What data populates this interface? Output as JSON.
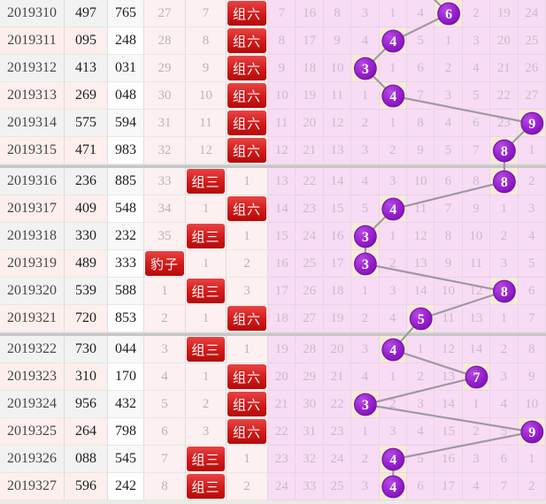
{
  "colors": {
    "badge_red": "#d01212",
    "circle_purple": "#9320c9",
    "trend_line_gray": "#9f99a1",
    "grid_cell_pink": "#f8dcf5",
    "hit_cell_cream": "#f8ead9",
    "row_stripe_gray": "#f2f2f2",
    "row_stripe_pink": "#fcefee",
    "miss_text_gray": "#b6b6b6",
    "grid_text_gray": "#c9bcc9"
  },
  "chart_data": {
    "type": "table",
    "description_labels": {
      "badge_zu6": "组六",
      "badge_zu3": "组三",
      "badge_baozi": "豹子"
    },
    "grid_columns": 10,
    "group_size": 6,
    "span_values": [
      6,
      4,
      3,
      4,
      9,
      8,
      8,
      4,
      3,
      3,
      8,
      5,
      4,
      7,
      3,
      9,
      4,
      4
    ],
    "rows": [
      {
        "issue": "2019310",
        "num1": "497",
        "num2": "765",
        "miss": [
          "27",
          "7",
          "组六"
        ],
        "badge_index": 2,
        "grid": [
          "7",
          "16",
          "8",
          "3",
          "1",
          "4",
          "6",
          "2",
          "19",
          "24"
        ],
        "hit_col": 6
      },
      {
        "issue": "2019311",
        "num1": "095",
        "num2": "248",
        "miss": [
          "28",
          "8",
          "组六"
        ],
        "badge_index": 2,
        "grid": [
          "8",
          "17",
          "9",
          "4",
          "4",
          "5",
          "1",
          "3",
          "20",
          "25"
        ],
        "hit_col": 4
      },
      {
        "issue": "2019312",
        "num1": "413",
        "num2": "031",
        "miss": [
          "29",
          "9",
          "组六"
        ],
        "badge_index": 2,
        "grid": [
          "9",
          "18",
          "10",
          "3",
          "1",
          "6",
          "2",
          "4",
          "21",
          "26"
        ],
        "hit_col": 3
      },
      {
        "issue": "2019313",
        "num1": "269",
        "num2": "048",
        "miss": [
          "30",
          "10",
          "组六"
        ],
        "badge_index": 2,
        "grid": [
          "10",
          "19",
          "11",
          "1",
          "4",
          "7",
          "3",
          "5",
          "22",
          "27"
        ],
        "hit_col": 4
      },
      {
        "issue": "2019314",
        "num1": "575",
        "num2": "594",
        "miss": [
          "31",
          "11",
          "组六"
        ],
        "badge_index": 2,
        "grid": [
          "11",
          "20",
          "12",
          "2",
          "1",
          "8",
          "4",
          "6",
          "23",
          "9"
        ],
        "hit_col": 9
      },
      {
        "issue": "2019315",
        "num1": "471",
        "num2": "983",
        "miss": [
          "32",
          "12",
          "组六"
        ],
        "badge_index": 2,
        "grid": [
          "12",
          "21",
          "13",
          "3",
          "2",
          "9",
          "5",
          "7",
          "8",
          "1"
        ],
        "hit_col": 8
      },
      {
        "issue": "2019316",
        "num1": "236",
        "num2": "885",
        "miss": [
          "33",
          "组三",
          "1"
        ],
        "badge_index": 1,
        "grid": [
          "13",
          "22",
          "14",
          "4",
          "3",
          "10",
          "6",
          "8",
          "8",
          "2"
        ],
        "hit_col": 8
      },
      {
        "issue": "2019317",
        "num1": "409",
        "num2": "548",
        "miss": [
          "34",
          "1",
          "组六"
        ],
        "badge_index": 2,
        "grid": [
          "14",
          "23",
          "15",
          "5",
          "4",
          "11",
          "7",
          "9",
          "1",
          "3"
        ],
        "hit_col": 4
      },
      {
        "issue": "2019318",
        "num1": "330",
        "num2": "232",
        "miss": [
          "35",
          "组三",
          "1"
        ],
        "badge_index": 1,
        "grid": [
          "15",
          "24",
          "16",
          "3",
          "1",
          "12",
          "8",
          "10",
          "2",
          "4"
        ],
        "hit_col": 3
      },
      {
        "issue": "2019319",
        "num1": "489",
        "num2": "333",
        "miss": [
          "豹子",
          "1",
          "2"
        ],
        "badge_index": 0,
        "grid": [
          "16",
          "25",
          "17",
          "3",
          "2",
          "13",
          "9",
          "11",
          "3",
          "5"
        ],
        "hit_col": 3
      },
      {
        "issue": "2019320",
        "num1": "539",
        "num2": "588",
        "miss": [
          "1",
          "组三",
          "3"
        ],
        "badge_index": 1,
        "grid": [
          "17",
          "26",
          "18",
          "1",
          "3",
          "14",
          "10",
          "12",
          "8",
          "6"
        ],
        "hit_col": 8
      },
      {
        "issue": "2019321",
        "num1": "720",
        "num2": "853",
        "miss": [
          "2",
          "1",
          "组六"
        ],
        "badge_index": 2,
        "grid": [
          "18",
          "27",
          "19",
          "2",
          "4",
          "5",
          "11",
          "13",
          "1",
          "7"
        ],
        "hit_col": 5
      },
      {
        "issue": "2019322",
        "num1": "730",
        "num2": "044",
        "miss": [
          "3",
          "组三",
          "1"
        ],
        "badge_index": 1,
        "grid": [
          "19",
          "28",
          "20",
          "3",
          "4",
          "1",
          "12",
          "14",
          "2",
          "8"
        ],
        "hit_col": 4
      },
      {
        "issue": "2019323",
        "num1": "310",
        "num2": "170",
        "miss": [
          "4",
          "1",
          "组六"
        ],
        "badge_index": 2,
        "grid": [
          "20",
          "29",
          "21",
          "4",
          "1",
          "2",
          "13",
          "7",
          "3",
          "9"
        ],
        "hit_col": 7
      },
      {
        "issue": "2019324",
        "num1": "956",
        "num2": "432",
        "miss": [
          "5",
          "2",
          "组六"
        ],
        "badge_index": 2,
        "grid": [
          "21",
          "30",
          "22",
          "3",
          "2",
          "3",
          "14",
          "1",
          "4",
          "10"
        ],
        "hit_col": 3
      },
      {
        "issue": "2019325",
        "num1": "264",
        "num2": "798",
        "miss": [
          "6",
          "3",
          "组六"
        ],
        "badge_index": 2,
        "grid": [
          "22",
          "31",
          "23",
          "1",
          "3",
          "4",
          "15",
          "2",
          "5",
          "9"
        ],
        "hit_col": 9
      },
      {
        "issue": "2019326",
        "num1": "088",
        "num2": "545",
        "miss": [
          "7",
          "组三",
          "1"
        ],
        "badge_index": 1,
        "grid": [
          "23",
          "32",
          "24",
          "2",
          "4",
          "5",
          "16",
          "3",
          "6",
          "1"
        ],
        "hit_col": 4
      },
      {
        "issue": "2019327",
        "num1": "596",
        "num2": "242",
        "miss": [
          "8",
          "组三",
          "2"
        ],
        "badge_index": 1,
        "grid": [
          "24",
          "33",
          "25",
          "3",
          "4",
          "6",
          "17",
          "4",
          "7",
          "2"
        ],
        "hit_col": 4
      }
    ]
  }
}
